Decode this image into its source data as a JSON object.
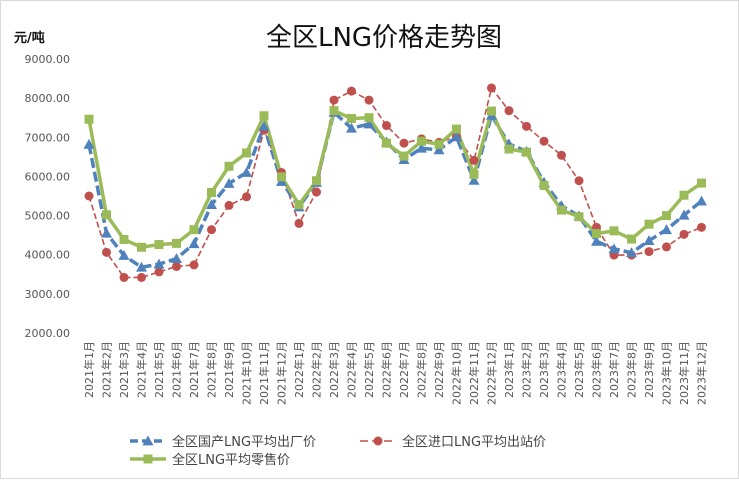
{
  "chart_data": {
    "type": "line",
    "title": "全区LNG价格走势图",
    "ylabel": "元/吨",
    "xlabel": "",
    "ylim": [
      2000,
      9000
    ],
    "yticks": [
      "2000.00",
      "3000.00",
      "4000.00",
      "5000.00",
      "6000.00",
      "7000.00",
      "8000.00",
      "9000.00"
    ],
    "grid": false,
    "legend_position": "bottom",
    "categories": [
      "2021年1月",
      "2021年2月",
      "2021年3月",
      "2021年4月",
      "2021年5月",
      "2021年6月",
      "2021年7月",
      "2021年8月",
      "2021年9月",
      "2021年10月",
      "2021年11月",
      "2021年12月",
      "2022年1月",
      "2022年2月",
      "2022年3月",
      "2022年4月",
      "2022年5月",
      "2022年6月",
      "2022年7月",
      "2022年8月",
      "2022年9月",
      "2022年10月",
      "2022年11月",
      "2022年12月",
      "2023年1月",
      "2023年2月",
      "2023年3月",
      "2023年4月",
      "2023年5月",
      "2023年6月",
      "2023年7月",
      "2023年8月",
      "2023年9月",
      "2023年10月",
      "2023年11月",
      "2023年12月"
    ],
    "series": [
      {
        "name": "全区国产LNG平均出厂价",
        "color": "#4f81bd",
        "style": "dashed",
        "marker": "triangle",
        "values": [
          6820,
          4550,
          3980,
          3680,
          3760,
          3900,
          4280,
          5280,
          5820,
          6100,
          7280,
          5870,
          5220,
          5850,
          7640,
          7230,
          7340,
          6880,
          6430,
          6720,
          6680,
          7010,
          5900,
          7560,
          6830,
          6640,
          5850,
          5250,
          4990,
          4340,
          4150,
          4050,
          4360,
          4640,
          5010,
          5370
        ]
      },
      {
        "name": "全区进口LNG平均出站价",
        "color": "#c0504d",
        "style": "dashed",
        "marker": "circle",
        "values": [
          5500,
          4060,
          3420,
          3420,
          3560,
          3700,
          3740,
          4640,
          5260,
          5480,
          7180,
          6100,
          4800,
          5600,
          7950,
          8180,
          7950,
          7300,
          6850,
          6960,
          6870,
          7020,
          6410,
          8260,
          7680,
          7280,
          6900,
          6540,
          5890,
          4700,
          3990,
          3990,
          4080,
          4200,
          4520,
          4700
        ]
      },
      {
        "name": "全区LNG平均零售价",
        "color": "#9bbb59",
        "style": "solid",
        "marker": "square",
        "values": [
          7460,
          5020,
          4390,
          4190,
          4260,
          4290,
          4640,
          5590,
          6260,
          6600,
          7550,
          5990,
          5280,
          5890,
          7680,
          7480,
          7500,
          6850,
          6520,
          6900,
          6820,
          7210,
          6050,
          7670,
          6700,
          6620,
          5770,
          5140,
          4970,
          4540,
          4610,
          4400,
          4780,
          5000,
          5520,
          5830
        ]
      }
    ]
  }
}
